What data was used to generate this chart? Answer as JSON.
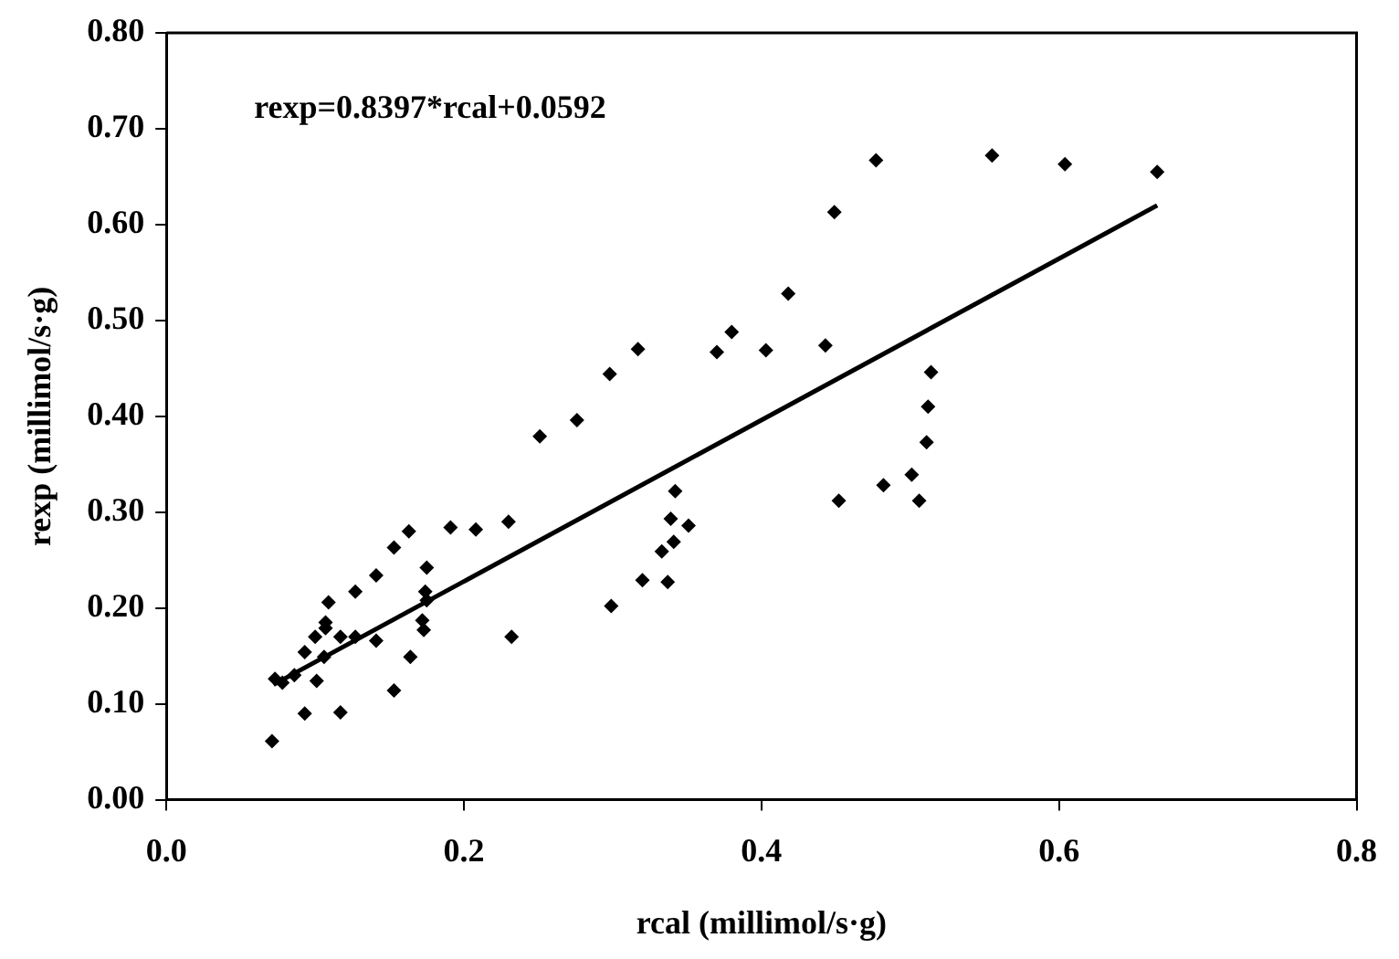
{
  "chart_data": {
    "type": "scatter",
    "xlabel": "rcal (millimol/s·g)",
    "ylabel": "rexp (millimol/s·g)",
    "annotations": [
      "rexp=0.8397*rcal+0.0592"
    ],
    "xlim": [
      0,
      0.8
    ],
    "xticks": [
      {
        "value": 0,
        "label": "0.0"
      },
      {
        "value": 0.2,
        "label": "0.2"
      },
      {
        "value": 0.4,
        "label": "0.4"
      },
      {
        "value": 0.6,
        "label": "0.6"
      },
      {
        "value": 0.8,
        "label": "0.8"
      }
    ],
    "ylim": [
      0,
      0.8
    ],
    "yticks": [
      {
        "value": 0,
        "label": "0.00"
      },
      {
        "value": 0.1,
        "label": "0.10"
      },
      {
        "value": 0.2,
        "label": "0.20"
      },
      {
        "value": 0.3,
        "label": "0.30"
      },
      {
        "value": 0.4,
        "label": "0.40"
      },
      {
        "value": 0.5,
        "label": "0.50"
      },
      {
        "value": 0.6,
        "label": "0.60"
      },
      {
        "value": 0.7,
        "label": "0.70"
      },
      {
        "value": 0.8,
        "label": "0.80"
      }
    ],
    "grid": false,
    "legend": false,
    "marker": "diamond",
    "series": [
      {
        "color": "#000000",
        "x": [
          0.071,
          0.073,
          0.078,
          0.086,
          0.093,
          0.093,
          0.101,
          0.1,
          0.106,
          0.107,
          0.107,
          0.109,
          0.117,
          0.117,
          0.127,
          0.127,
          0.141,
          0.141,
          0.153,
          0.153,
          0.164,
          0.163,
          0.172,
          0.173,
          0.175,
          0.174,
          0.175,
          0.191,
          0.208,
          0.23,
          0.232,
          0.251,
          0.276,
          0.298,
          0.317,
          0.299,
          0.32,
          0.337,
          0.333,
          0.341,
          0.339,
          0.351,
          0.342,
          0.37,
          0.38,
          0.403,
          0.418,
          0.443,
          0.449,
          0.452,
          0.477,
          0.482,
          0.501,
          0.506,
          0.511,
          0.512,
          0.514,
          0.555,
          0.604,
          0.666
        ],
        "values": [
          0.061,
          0.126,
          0.122,
          0.13,
          0.09,
          0.154,
          0.124,
          0.17,
          0.149,
          0.179,
          0.185,
          0.206,
          0.091,
          0.17,
          0.17,
          0.217,
          0.166,
          0.234,
          0.114,
          0.263,
          0.149,
          0.28,
          0.187,
          0.177,
          0.242,
          0.217,
          0.208,
          0.284,
          0.282,
          0.29,
          0.17,
          0.379,
          0.396,
          0.444,
          0.47,
          0.202,
          0.229,
          0.227,
          0.259,
          0.269,
          0.293,
          0.286,
          0.322,
          0.467,
          0.488,
          0.469,
          0.528,
          0.474,
          0.613,
          0.312,
          0.667,
          0.328,
          0.339,
          0.312,
          0.373,
          0.41,
          0.446,
          0.672,
          0.663,
          0.655
        ]
      },
      {
        "type": "line",
        "color": "#000000",
        "x": [
          0.072,
          0.666
        ],
        "values": [
          0.12,
          0.62
        ],
        "marker": "none"
      }
    ]
  }
}
